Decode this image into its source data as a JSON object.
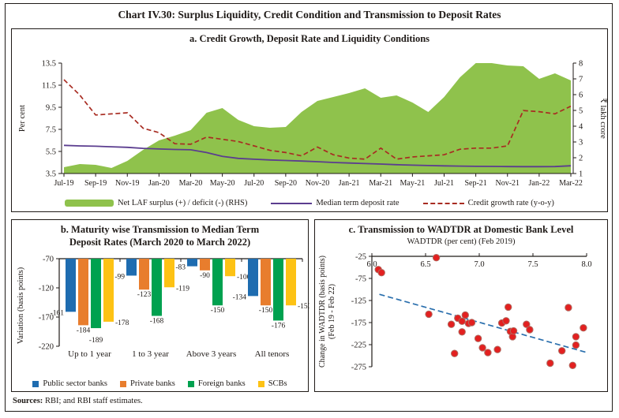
{
  "figure": {
    "title": "Chart IV.30: Surplus Liquidity, Credit Condition and Transmission to Deposit Rates",
    "sources_label": "Sources:",
    "sources_text": " RBI; and RBI staff estimates."
  },
  "colors": {
    "frame": "#1f1a17",
    "scatter_red": "#e32020",
    "scatter_rim": "#b06a60",
    "trend_blue": "#2a6fad"
  },
  "chart_data": [
    {
      "id": "panel_a",
      "type": "area+line",
      "title": "a. Credit Growth, Deposit Rate and Liquidity Conditions",
      "ylabel_left": "Per cent",
      "ylabel_right": "₹ lakh crore",
      "ylim_left": [
        3.5,
        13.5
      ],
      "yticks_left": [
        13.5,
        11.5,
        9.5,
        7.5,
        5.5,
        3.5
      ],
      "ylim_right": [
        1,
        8
      ],
      "yticks_right": [
        8,
        7,
        6,
        5,
        4,
        3,
        2,
        1
      ],
      "x": [
        "Jul-19",
        "Aug-19",
        "Sep-19",
        "Oct-19",
        "Nov-19",
        "Dec-19",
        "Jan-20",
        "Feb-20",
        "Mar-20",
        "Apr-20",
        "May-20",
        "Jun-20",
        "Jul-20",
        "Aug-20",
        "Sep-20",
        "Oct-20",
        "Nov-20",
        "Dec-20",
        "Jan-21",
        "Feb-21",
        "Mar-21",
        "Apr-21",
        "May-21",
        "Jun-21",
        "Jul-21",
        "Aug-21",
        "Sep-21",
        "Oct-21",
        "Nov-21",
        "Dec-21",
        "Jan-22",
        "Feb-22",
        "Mar-22"
      ],
      "series": [
        {
          "name": "Net LAF surplus (+) / deficit (-) (RHS)",
          "type": "area",
          "axis": "right",
          "color": "#8fc24c",
          "values": [
            1.4,
            1.6,
            1.55,
            1.35,
            1.8,
            2.5,
            3.1,
            3.4,
            3.75,
            4.85,
            5.15,
            4.4,
            4.0,
            3.9,
            3.95,
            4.9,
            5.6,
            5.85,
            6.1,
            6.4,
            5.8,
            5.95,
            5.5,
            4.9,
            5.85,
            7.1,
            8.0,
            8.0,
            7.85,
            7.8,
            7.0,
            7.35,
            6.9
          ]
        },
        {
          "name": "Median term deposit rate",
          "type": "line",
          "axis": "left",
          "color": "#5b3d8f",
          "values": [
            6.05,
            6.0,
            5.97,
            5.92,
            5.87,
            5.78,
            5.72,
            5.68,
            5.65,
            5.4,
            5.05,
            4.87,
            4.79,
            4.73,
            4.68,
            4.63,
            4.57,
            4.5,
            4.45,
            4.4,
            4.36,
            4.3,
            4.26,
            4.22,
            4.19,
            4.17,
            4.15,
            4.14,
            4.13,
            4.12,
            4.12,
            4.13,
            4.2
          ]
        },
        {
          "name": "Credit growth rate (y-o-y)",
          "type": "dashed-line",
          "axis": "left",
          "color": "#a82c22",
          "values": [
            12.0,
            10.6,
            8.8,
            8.9,
            9.0,
            7.6,
            7.2,
            6.2,
            6.15,
            6.8,
            6.6,
            6.4,
            6.0,
            5.6,
            5.4,
            5.1,
            5.9,
            5.2,
            4.9,
            4.8,
            5.8,
            4.8,
            5.0,
            5.1,
            5.2,
            5.7,
            5.8,
            5.8,
            6.0,
            9.2,
            9.1,
            8.9,
            9.6
          ]
        }
      ]
    },
    {
      "id": "panel_b",
      "type": "bar",
      "title_line1": "b. Maturity wise Transmission to Median Term",
      "title_line2": "Deposit Rates (March 2020 to March 2022)",
      "ylabel": "Variation (basis points)",
      "ylim": [
        -220,
        -70
      ],
      "yticks": [
        -70,
        -120,
        -170,
        -220
      ],
      "categories": [
        "Up to 1 year",
        "1 to 3 year",
        "Above 3 years",
        "All tenors"
      ],
      "series": [
        {
          "name": "Public sector banks",
          "color": "#1e6cb0",
          "values": [
            -161,
            -99,
            -83,
            -134
          ]
        },
        {
          "name": "Private banks",
          "color": "#e87d2d",
          "values": [
            -184,
            -123,
            -90,
            -150
          ]
        },
        {
          "name": "Foreign banks",
          "color": "#00a14f",
          "values": [
            -189,
            -168,
            -150,
            -176
          ]
        },
        {
          "name": "SCBs",
          "color": "#fdc214",
          "values": [
            -178,
            -119,
            -100,
            -150
          ]
        }
      ]
    },
    {
      "id": "panel_c",
      "type": "scatter",
      "title": "c. Transmission to WADTDR at Domestic Bank Level",
      "xlabel": "WADTDR (per cent) (Feb 2019)",
      "ylabel_line1": "Change in WADTDR (basis points)",
      "ylabel_line2": "(Feb 19 - Feb 22)",
      "xlim": [
        6.0,
        8.0
      ],
      "xticks": [
        "6.0",
        "6.5",
        "7.0",
        "7.5",
        "8.0"
      ],
      "ylim": [
        -275,
        -25
      ],
      "yticks": [
        -25,
        -75,
        -125,
        -175,
        -225,
        -275
      ],
      "points": [
        [
          6.06,
          -55
        ],
        [
          6.09,
          -62
        ],
        [
          6.6,
          -28
        ],
        [
          6.53,
          -156
        ],
        [
          6.74,
          -179
        ],
        [
          6.77,
          -245
        ],
        [
          6.8,
          -165
        ],
        [
          6.84,
          -172
        ],
        [
          6.84,
          -196
        ],
        [
          6.87,
          -158
        ],
        [
          6.9,
          -177
        ],
        [
          6.93,
          -175
        ],
        [
          6.99,
          -211
        ],
        [
          7.03,
          -232
        ],
        [
          7.08,
          -243
        ],
        [
          7.17,
          -236
        ],
        [
          7.21,
          -176
        ],
        [
          7.25,
          -171
        ],
        [
          7.27,
          -140
        ],
        [
          7.29,
          -195
        ],
        [
          7.31,
          -207
        ],
        [
          7.32,
          -194
        ],
        [
          7.44,
          -179
        ],
        [
          7.47,
          -191
        ],
        [
          7.66,
          -267
        ],
        [
          7.77,
          -239
        ],
        [
          7.83,
          -141
        ],
        [
          7.87,
          -272
        ],
        [
          7.9,
          -207
        ],
        [
          7.9,
          -226
        ],
        [
          7.97,
          -187
        ]
      ],
      "trend": {
        "x1": 6.07,
        "y1": -111,
        "x2": 7.99,
        "y2": -242
      }
    }
  ]
}
